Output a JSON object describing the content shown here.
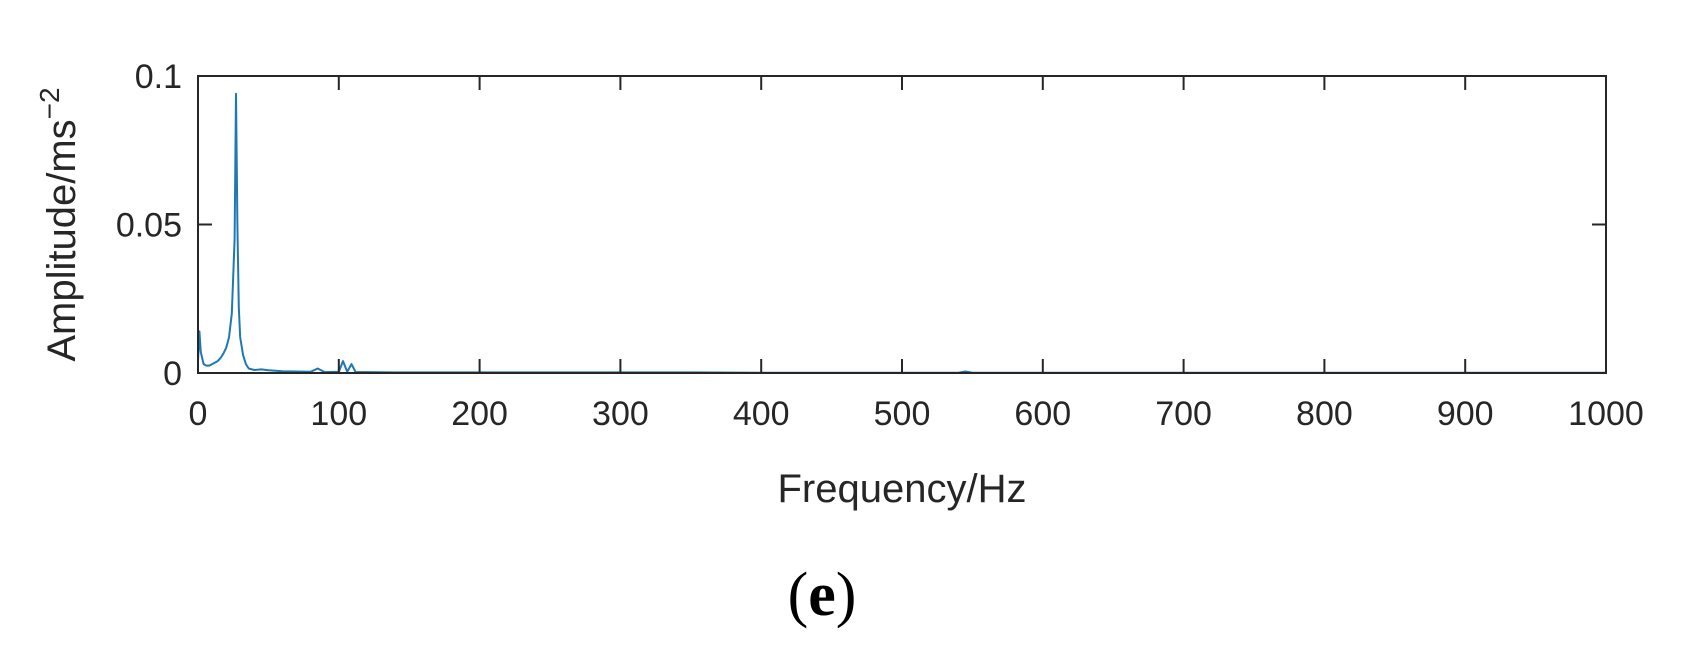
{
  "chart_data": {
    "type": "line",
    "xlabel": "Frequency/Hz",
    "ylabel": "Amplitude/ms",
    "ylabel_superscript": "−2",
    "panel_label_open": "(",
    "panel_label_letter": "e",
    "panel_label_close": ")",
    "xlim": [
      0,
      1000
    ],
    "ylim": [
      0,
      0.1
    ],
    "xticks": [
      "0",
      "100",
      "200",
      "300",
      "400",
      "500",
      "600",
      "700",
      "800",
      "900",
      "1000"
    ],
    "yticks": [
      "0",
      "0.05",
      "0.1"
    ],
    "grid": false,
    "line_color": "#1f77b4",
    "series": [
      {
        "x": [
          0,
          1,
          2,
          4,
          6,
          8,
          10,
          12,
          14,
          16,
          18,
          20,
          22,
          24,
          26,
          27,
          28,
          29,
          30,
          32,
          34,
          36,
          40,
          45,
          50,
          60,
          70,
          80,
          85,
          90,
          100,
          103,
          106,
          109,
          112,
          120,
          140,
          160,
          200,
          250,
          300,
          350,
          400,
          450,
          500,
          520,
          540,
          545,
          550,
          600,
          650,
          700,
          750,
          800,
          850,
          900,
          950,
          1000
        ],
        "y": [
          0.004,
          0.014,
          0.007,
          0.003,
          0.0025,
          0.0025,
          0.003,
          0.0035,
          0.004,
          0.005,
          0.0065,
          0.0085,
          0.012,
          0.02,
          0.045,
          0.094,
          0.05,
          0.022,
          0.012,
          0.006,
          0.003,
          0.0015,
          0.001,
          0.0012,
          0.0009,
          0.0006,
          0.0005,
          0.0004,
          0.0015,
          0.0003,
          0.0004,
          0.004,
          0.0004,
          0.003,
          0.0003,
          0.0003,
          0.0002,
          0.0002,
          0.0002,
          0.0002,
          0.0002,
          0.0002,
          0.0001,
          0.0001,
          0.0001,
          0.0001,
          0.0001,
          0.0005,
          0.0001,
          0.0001,
          0.0001,
          0.0001,
          0.0001,
          0.0001,
          0.0001,
          0.0001,
          0.0001,
          0.0001
        ]
      }
    ]
  }
}
